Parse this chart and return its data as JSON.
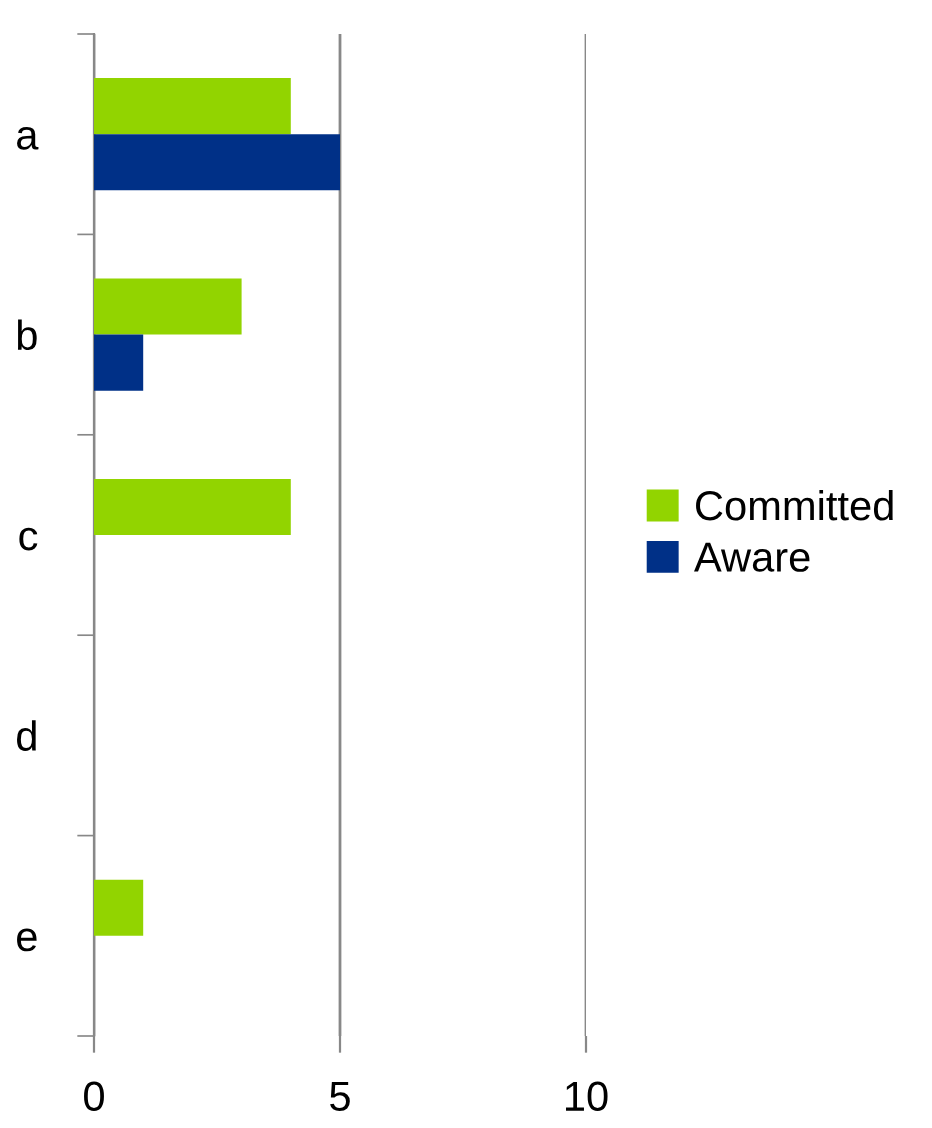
{
  "chart_data": {
    "type": "bar",
    "orientation": "horizontal",
    "categories": [
      "a",
      "b",
      "c",
      "d",
      "e"
    ],
    "series": [
      {
        "name": "Committed",
        "color": "#92d400",
        "values": [
          4,
          3,
          4,
          0,
          1
        ]
      },
      {
        "name": "Aware",
        "color": "#003087",
        "values": [
          5,
          1,
          0,
          0,
          0
        ]
      }
    ],
    "xlim": [
      0,
      10
    ],
    "xticks": [
      0,
      5,
      10
    ],
    "grid": "x",
    "legend": "right"
  }
}
